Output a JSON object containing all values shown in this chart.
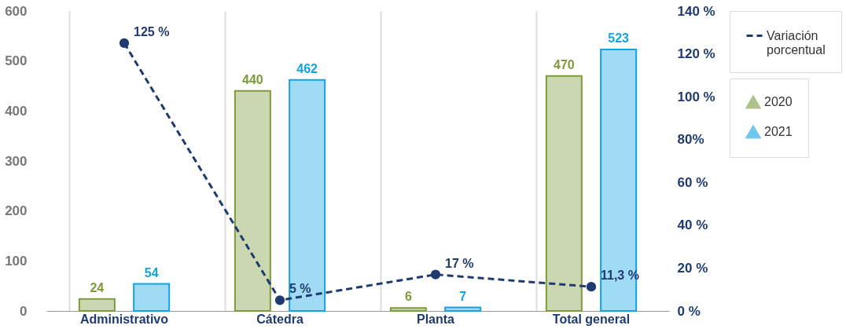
{
  "chart_data": {
    "type": "bar",
    "categories": [
      "Administrativo",
      "Cátedra",
      "Planta",
      "Total general"
    ],
    "series": [
      {
        "name": "2020",
        "color": "#7d9a3c",
        "values": [
          24,
          440,
          6,
          470
        ]
      },
      {
        "name": "2021",
        "color": "#12a3e3",
        "values": [
          54,
          462,
          7,
          523
        ]
      },
      {
        "name": "Variación porcentual",
        "type": "line",
        "axis": "y2",
        "color": "#1f3a6e",
        "line_style": "dashed",
        "marker": "circle",
        "values": [
          125,
          5,
          17,
          11.3
        ],
        "value_labels": [
          "125 %",
          "5 %",
          "17 %",
          "11,3 %"
        ]
      }
    ],
    "data_labels": true,
    "ylim": [
      0,
      600
    ],
    "yticks": [
      0,
      100,
      200,
      300,
      400,
      500,
      600
    ],
    "y2lim": [
      0,
      140
    ],
    "y2ticks": [
      {
        "value": 0,
        "label": "0 %"
      },
      {
        "value": 20,
        "label": "20 %"
      },
      {
        "value": 40,
        "label": "40 %"
      },
      {
        "value": 60,
        "label": "60 %"
      },
      {
        "value": 80,
        "label": "80%"
      },
      {
        "value": 100,
        "label": "100 %"
      },
      {
        "value": 120,
        "label": "120 %"
      },
      {
        "value": 140,
        "label": "140 %"
      }
    ],
    "grid": "x",
    "legend": "right"
  }
}
